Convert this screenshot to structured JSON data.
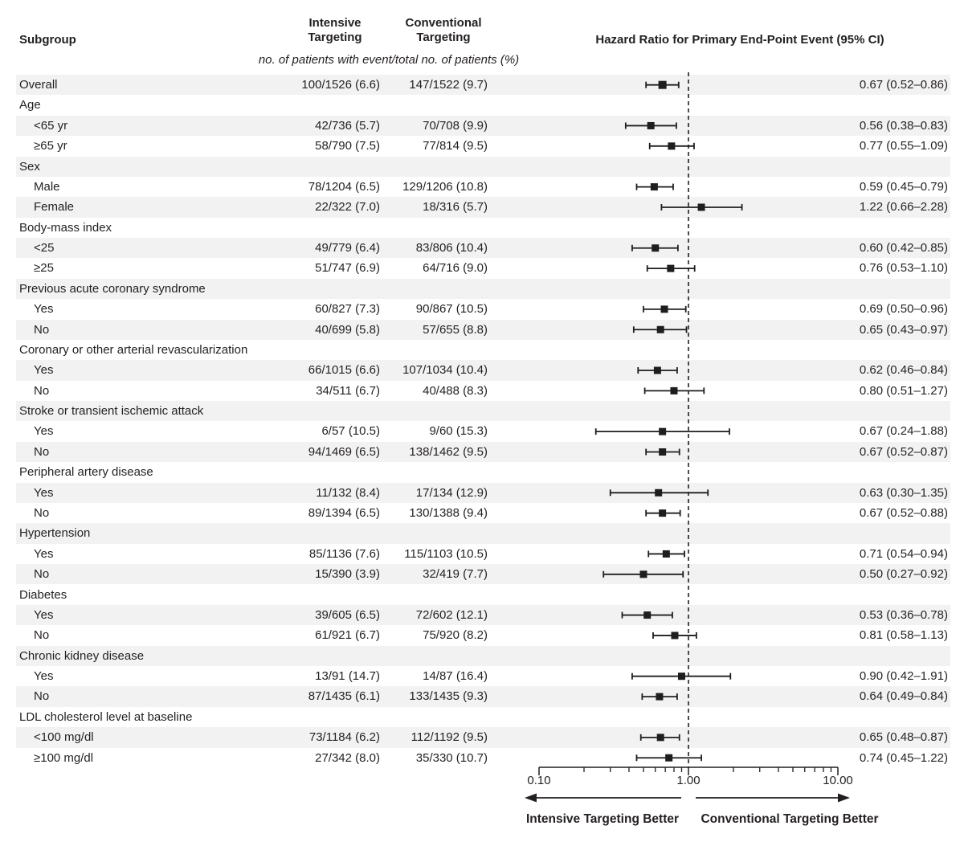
{
  "header": {
    "subgroup_label": "Subgroup",
    "intensive_label": "Intensive Targeting",
    "conventional_label": "Conventional Targeting",
    "hr_title": "Hazard Ratio for Primary End-Point Event (95% CI)",
    "note": "no. of patients with event/total no. of patients (%)"
  },
  "axis": {
    "scale": "log",
    "min": 0.1,
    "max": 10.0,
    "reference": 1.0,
    "tick_labels": [
      "0.10",
      "1.00",
      "10.00"
    ],
    "tick_values": [
      0.1,
      1.0,
      10.0
    ]
  },
  "footer": {
    "left_arrow_label": "Intensive Targeting Better",
    "right_arrow_label": "Conventional Targeting Better"
  },
  "colors": {
    "ink": "#231f20",
    "stripe": "#f2f2f2",
    "marker": "#1e1e1e"
  },
  "chart_data": {
    "type": "forest",
    "x_scale": "log10",
    "x_range": [
      0.1,
      10.0
    ],
    "reference_line": 1.0,
    "rows": [
      {
        "label": "Overall",
        "indent": 0,
        "group_header": false,
        "intensive": "100/1526 (6.6)",
        "conventional": "147/1522 (9.7)",
        "hr": 0.67,
        "lo": 0.52,
        "hi": 0.86,
        "hr_text": "0.67 (0.52–0.86)",
        "size": 10
      },
      {
        "label": "Age",
        "indent": 0,
        "group_header": true
      },
      {
        "label": "<65 yr",
        "indent": 1,
        "group_header": false,
        "intensive": "42/736 (5.7)",
        "conventional": "70/708 (9.9)",
        "hr": 0.56,
        "lo": 0.38,
        "hi": 0.83,
        "hr_text": "0.56 (0.38–0.83)",
        "size": 9
      },
      {
        "label": "≥65 yr",
        "indent": 1,
        "group_header": false,
        "intensive": "58/790 (7.5)",
        "conventional": "77/814 (9.5)",
        "hr": 0.77,
        "lo": 0.55,
        "hi": 1.09,
        "hr_text": "0.77 (0.55–1.09)",
        "size": 9
      },
      {
        "label": "Sex",
        "indent": 0,
        "group_header": true
      },
      {
        "label": "Male",
        "indent": 1,
        "group_header": false,
        "intensive": "78/1204 (6.5)",
        "conventional": "129/1206 (10.8)",
        "hr": 0.59,
        "lo": 0.45,
        "hi": 0.79,
        "hr_text": "0.59 (0.45–0.79)",
        "size": 9
      },
      {
        "label": "Female",
        "indent": 1,
        "group_header": false,
        "intensive": "22/322 (7.0)",
        "conventional": "18/316 (5.7)",
        "hr": 1.22,
        "lo": 0.66,
        "hi": 2.28,
        "hr_text": "1.22 (0.66–2.28)",
        "size": 9
      },
      {
        "label": "Body-mass index",
        "indent": 0,
        "group_header": true
      },
      {
        "label": "<25",
        "indent": 1,
        "group_header": false,
        "intensive": "49/779 (6.4)",
        "conventional": "83/806 (10.4)",
        "hr": 0.6,
        "lo": 0.42,
        "hi": 0.85,
        "hr_text": "0.60 (0.42–0.85)",
        "size": 9
      },
      {
        "label": "≥25",
        "indent": 1,
        "group_header": false,
        "intensive": "51/747 (6.9)",
        "conventional": "64/716 (9.0)",
        "hr": 0.76,
        "lo": 0.53,
        "hi": 1.1,
        "hr_text": "0.76 (0.53–1.10)",
        "size": 9
      },
      {
        "label": "Previous acute coronary syndrome",
        "indent": 0,
        "group_header": true
      },
      {
        "label": "Yes",
        "indent": 1,
        "group_header": false,
        "intensive": "60/827 (7.3)",
        "conventional": "90/867 (10.5)",
        "hr": 0.69,
        "lo": 0.5,
        "hi": 0.96,
        "hr_text": "0.69 (0.50–0.96)",
        "size": 9
      },
      {
        "label": "No",
        "indent": 1,
        "group_header": false,
        "intensive": "40/699 (5.8)",
        "conventional": "57/655 (8.8)",
        "hr": 0.65,
        "lo": 0.43,
        "hi": 0.97,
        "hr_text": "0.65 (0.43–0.97)",
        "size": 9
      },
      {
        "label": "Coronary or other arterial revascularization",
        "indent": 0,
        "group_header": true
      },
      {
        "label": "Yes",
        "indent": 1,
        "group_header": false,
        "intensive": "66/1015 (6.6)",
        "conventional": "107/1034 (10.4)",
        "hr": 0.62,
        "lo": 0.46,
        "hi": 0.84,
        "hr_text": "0.62 (0.46–0.84)",
        "size": 9
      },
      {
        "label": "No",
        "indent": 1,
        "group_header": false,
        "intensive": "34/511 (6.7)",
        "conventional": "40/488 (8.3)",
        "hr": 0.8,
        "lo": 0.51,
        "hi": 1.27,
        "hr_text": "0.80 (0.51–1.27)",
        "size": 9
      },
      {
        "label": "Stroke or transient ischemic attack",
        "indent": 0,
        "group_header": true
      },
      {
        "label": "Yes",
        "indent": 1,
        "group_header": false,
        "intensive": "6/57 (10.5)",
        "conventional": "9/60 (15.3)",
        "hr": 0.67,
        "lo": 0.24,
        "hi": 1.88,
        "hr_text": "0.67 (0.24–1.88)",
        "size": 9
      },
      {
        "label": "No",
        "indent": 1,
        "group_header": false,
        "intensive": "94/1469 (6.5)",
        "conventional": "138/1462 (9.5)",
        "hr": 0.67,
        "lo": 0.52,
        "hi": 0.87,
        "hr_text": "0.67 (0.52–0.87)",
        "size": 9
      },
      {
        "label": "Peripheral artery disease",
        "indent": 0,
        "group_header": true
      },
      {
        "label": "Yes",
        "indent": 1,
        "group_header": false,
        "intensive": "11/132 (8.4)",
        "conventional": "17/134 (12.9)",
        "hr": 0.63,
        "lo": 0.3,
        "hi": 1.35,
        "hr_text": "0.63 (0.30–1.35)",
        "size": 9
      },
      {
        "label": "No",
        "indent": 1,
        "group_header": false,
        "intensive": "89/1394 (6.5)",
        "conventional": "130/1388 (9.4)",
        "hr": 0.67,
        "lo": 0.52,
        "hi": 0.88,
        "hr_text": "0.67 (0.52–0.88)",
        "size": 9
      },
      {
        "label": "Hypertension",
        "indent": 0,
        "group_header": true
      },
      {
        "label": "Yes",
        "indent": 1,
        "group_header": false,
        "intensive": "85/1136 (7.6)",
        "conventional": "115/1103 (10.5)",
        "hr": 0.71,
        "lo": 0.54,
        "hi": 0.94,
        "hr_text": "0.71 (0.54–0.94)",
        "size": 9
      },
      {
        "label": "No",
        "indent": 1,
        "group_header": false,
        "intensive": "15/390 (3.9)",
        "conventional": "32/419 (7.7)",
        "hr": 0.5,
        "lo": 0.27,
        "hi": 0.92,
        "hr_text": "0.50 (0.27–0.92)",
        "size": 9
      },
      {
        "label": "Diabetes",
        "indent": 0,
        "group_header": true
      },
      {
        "label": "Yes",
        "indent": 1,
        "group_header": false,
        "intensive": "39/605 (6.5)",
        "conventional": "72/602 (12.1)",
        "hr": 0.53,
        "lo": 0.36,
        "hi": 0.78,
        "hr_text": "0.53 (0.36–0.78)",
        "size": 9
      },
      {
        "label": "No",
        "indent": 1,
        "group_header": false,
        "intensive": "61/921 (6.7)",
        "conventional": "75/920 (8.2)",
        "hr": 0.81,
        "lo": 0.58,
        "hi": 1.13,
        "hr_text": "0.81 (0.58–1.13)",
        "size": 9
      },
      {
        "label": "Chronic kidney disease",
        "indent": 0,
        "group_header": true
      },
      {
        "label": "Yes",
        "indent": 1,
        "group_header": false,
        "intensive": "13/91 (14.7)",
        "conventional": "14/87 (16.4)",
        "hr": 0.9,
        "lo": 0.42,
        "hi": 1.91,
        "hr_text": "0.90 (0.42–1.91)",
        "size": 9
      },
      {
        "label": "No",
        "indent": 1,
        "group_header": false,
        "intensive": "87/1435 (6.1)",
        "conventional": "133/1435 (9.3)",
        "hr": 0.64,
        "lo": 0.49,
        "hi": 0.84,
        "hr_text": "0.64 (0.49–0.84)",
        "size": 9
      },
      {
        "label": "LDL cholesterol level at baseline",
        "indent": 0,
        "group_header": true
      },
      {
        "label": "<100 mg/dl",
        "indent": 1,
        "group_header": false,
        "intensive": "73/1184 (6.2)",
        "conventional": "112/1192 (9.5)",
        "hr": 0.65,
        "lo": 0.48,
        "hi": 0.87,
        "hr_text": "0.65 (0.48–0.87)",
        "size": 9
      },
      {
        "label": "≥100 mg/dl",
        "indent": 1,
        "group_header": false,
        "intensive": "27/342 (8.0)",
        "conventional": "35/330 (10.7)",
        "hr": 0.74,
        "lo": 0.45,
        "hi": 1.22,
        "hr_text": "0.74 (0.45–1.22)",
        "size": 9
      }
    ]
  }
}
